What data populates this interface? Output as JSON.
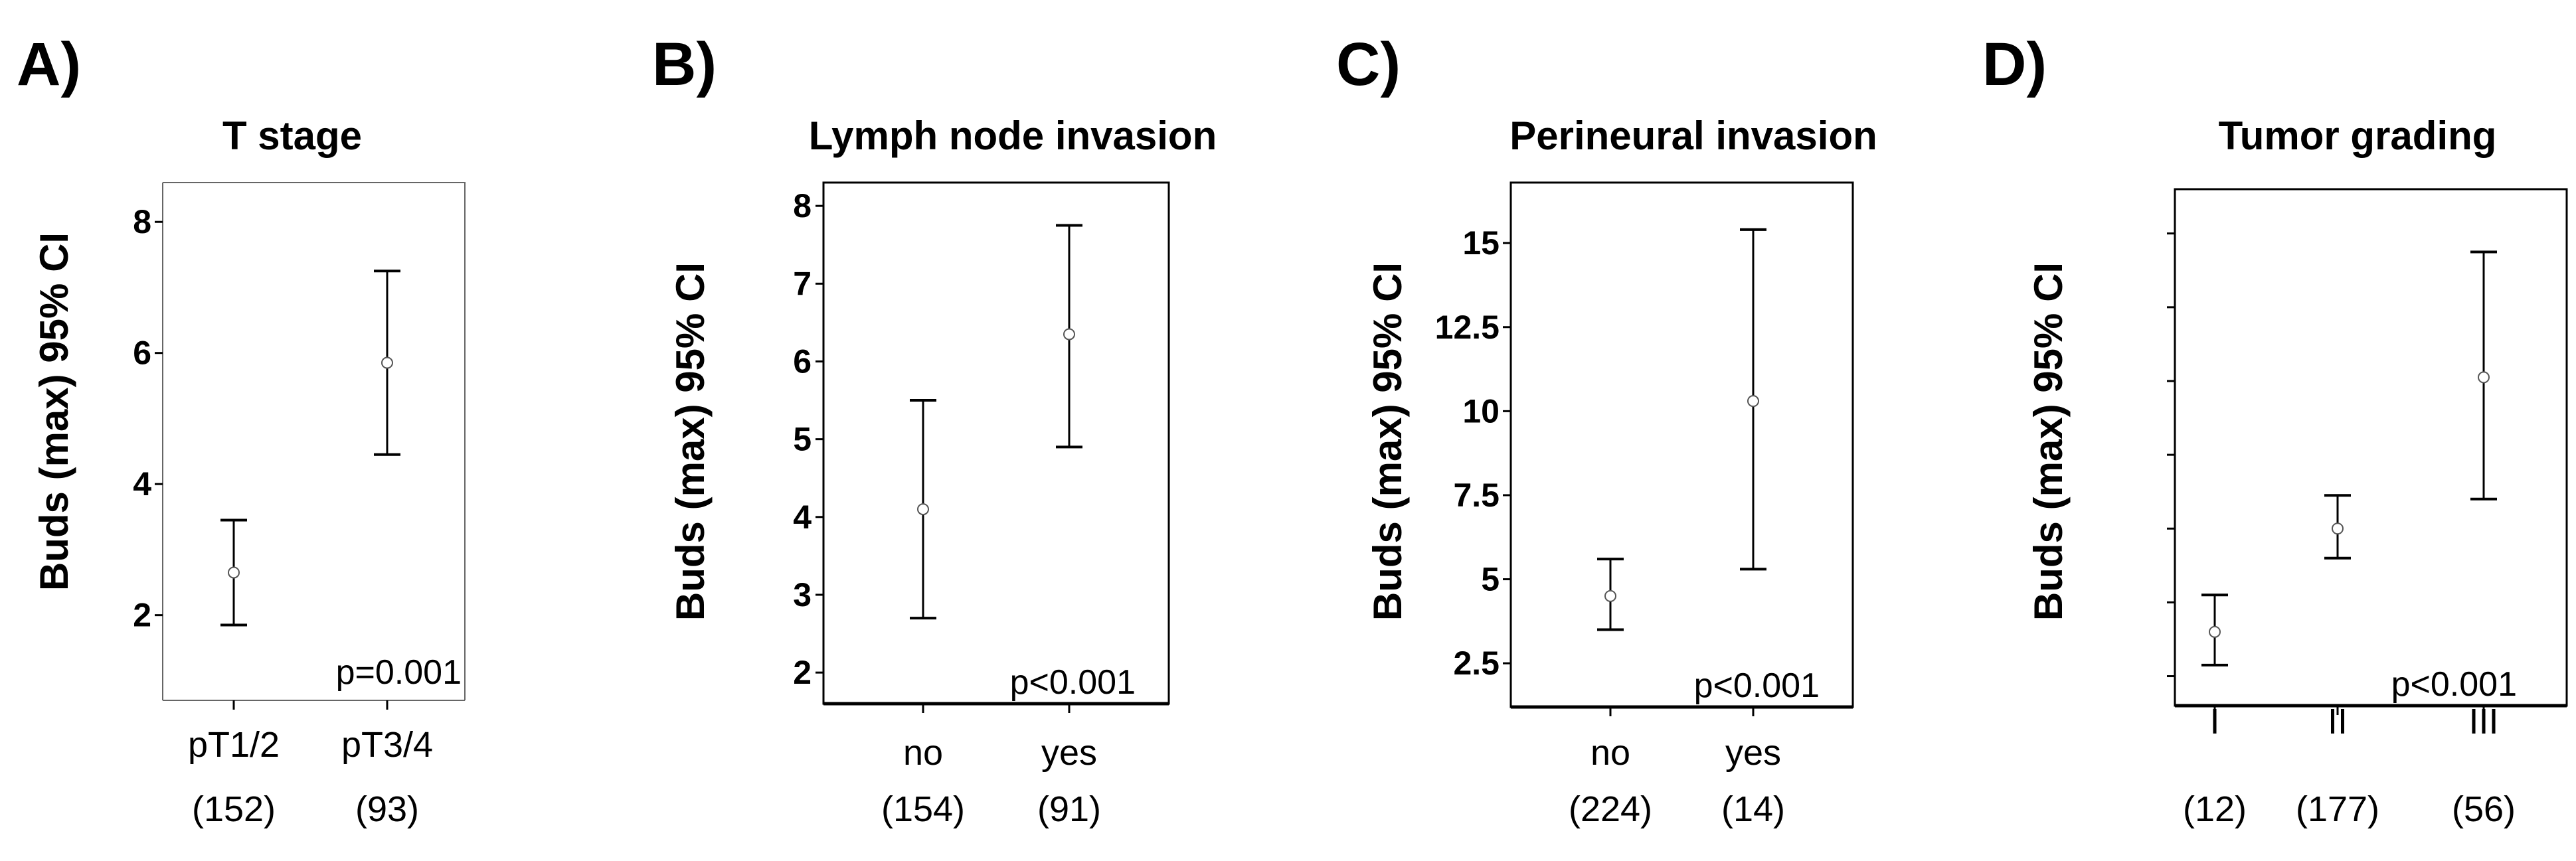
{
  "chart_data": [
    {
      "panel": "A)",
      "type": "errorbar",
      "title": "T stage",
      "ylabel": "Buds (max) 95% CI",
      "ylim": [
        0.7,
        8.6
      ],
      "yticks": [
        2,
        4,
        6,
        8
      ],
      "ytick_labels": [
        "2",
        "4",
        "6",
        "8"
      ],
      "categories": [
        "pT1/2",
        "pT3/4"
      ],
      "counts": [
        "(152)",
        "(93)"
      ],
      "means": [
        2.65,
        5.85
      ],
      "lower": [
        1.85,
        4.45
      ],
      "upper": [
        3.45,
        7.25
      ],
      "pvalue": "p=0.001"
    },
    {
      "panel": "B)",
      "type": "errorbar",
      "title": "Lymph node invasion",
      "ylabel": "Buds (max) 95% CI",
      "ylim": [
        1.6,
        8.3
      ],
      "yticks": [
        2,
        3,
        4,
        5,
        6,
        7,
        8
      ],
      "ytick_labels": [
        "2",
        "3",
        "4",
        "5",
        "6",
        "7",
        "8"
      ],
      "categories": [
        "no",
        "yes"
      ],
      "counts": [
        "(154)",
        "(91)"
      ],
      "means": [
        4.1,
        6.35
      ],
      "lower": [
        2.7,
        4.9
      ],
      "upper": [
        5.5,
        7.75
      ],
      "pvalue": "p<0.001"
    },
    {
      "panel": "C)",
      "type": "errorbar",
      "title": "Perineural invasion",
      "ylabel": "Buds (max) 95% CI",
      "ylim": [
        1.2,
        16.8
      ],
      "yticks": [
        2.5,
        5,
        7.5,
        10,
        12.5,
        15
      ],
      "ytick_labels": [
        "2.5",
        "5",
        "7.5",
        "10",
        "12.5",
        "15"
      ],
      "categories": [
        "no",
        "yes"
      ],
      "counts": [
        "(224)",
        "(14)"
      ],
      "means": [
        4.5,
        10.3
      ],
      "lower": [
        3.5,
        5.3
      ],
      "upper": [
        5.6,
        15.4
      ],
      "pvalue": "p<0.001"
    },
    {
      "panel": "D)",
      "type": "errorbar",
      "title": "Tumor grading",
      "ylabel": "Buds (max) 95% CI",
      "ylim": [
        1.6,
        8.6
      ],
      "yticks": [
        2,
        3,
        4,
        5,
        6,
        7,
        8
      ],
      "ytick_labels": [
        "",
        "",
        "",
        "",
        "",
        "",
        ""
      ],
      "categories": [
        "I",
        "II",
        "III"
      ],
      "counts": [
        "(12)",
        "(177)",
        "(56)"
      ],
      "means": [
        2.6,
        4.0,
        6.05
      ],
      "lower": [
        2.15,
        3.6,
        4.4
      ],
      "upper": [
        3.1,
        4.45,
        7.75
      ],
      "pvalue": "p<0.001"
    }
  ]
}
